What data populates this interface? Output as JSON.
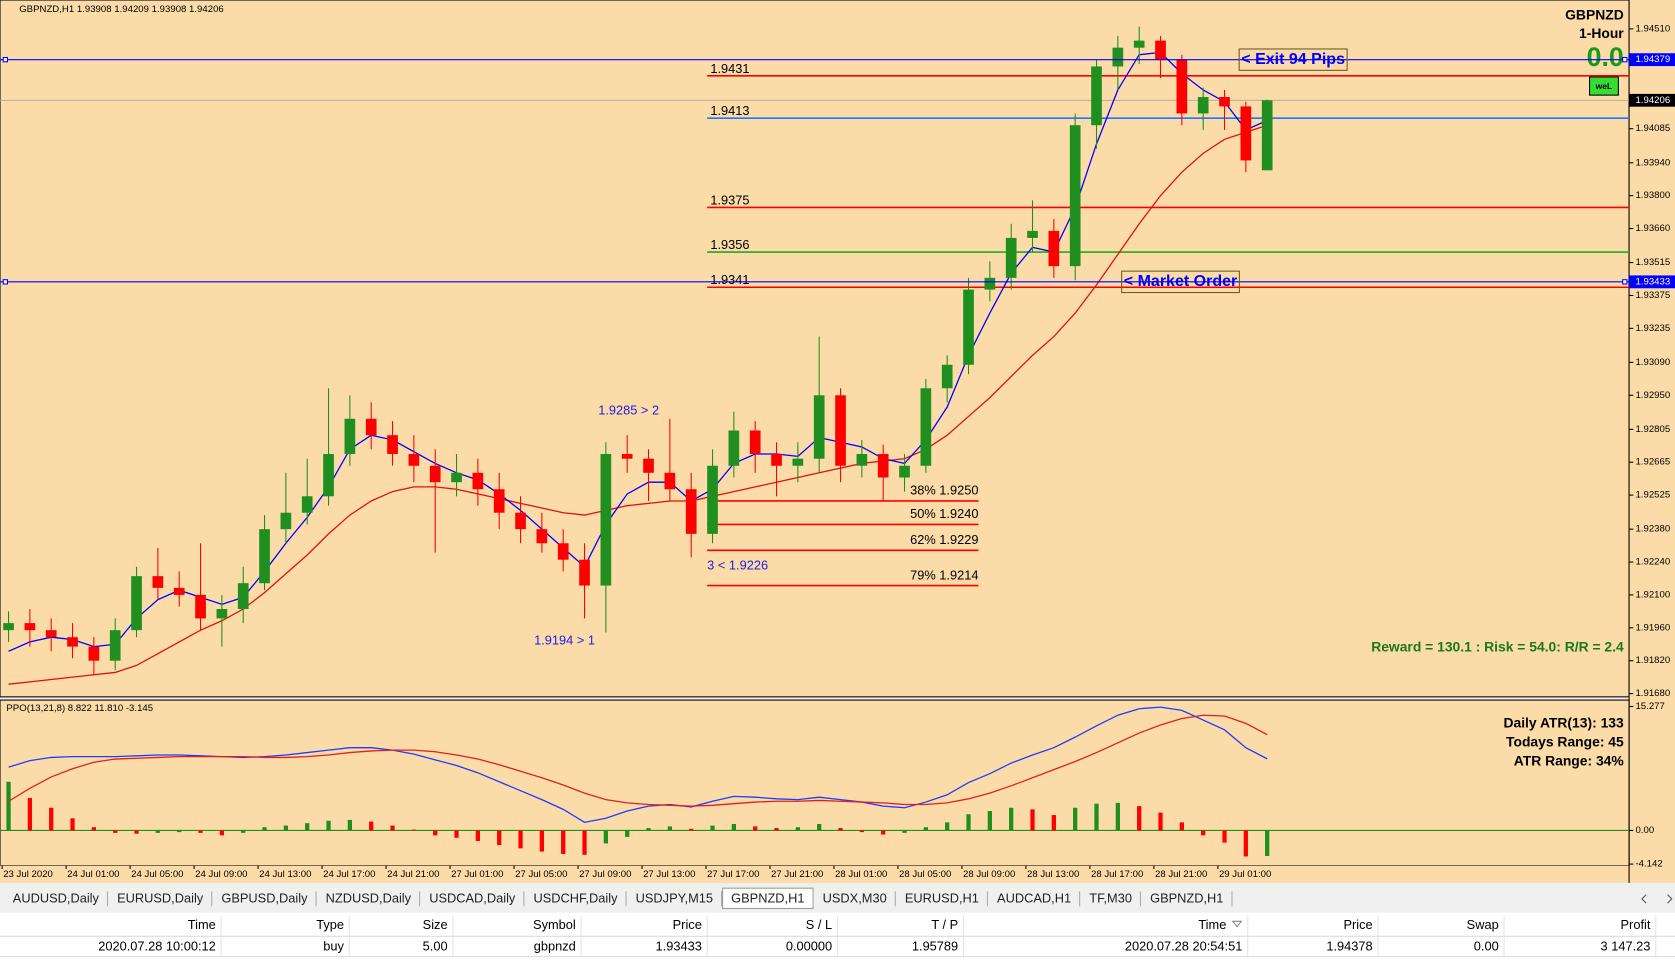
{
  "chart_data": {
    "type": "candlestick",
    "title": "GBPNZD,H1  1.93908 1.94209 1.93908 1.94206",
    "symbol": "GBPNZD",
    "timeframe": "1-Hour",
    "pnl_display": "0.0",
    "button_label": "weL",
    "reward_risk": "Reward = 130.1 : Risk = 54.0: R/R = 2.4",
    "up_color": "#1f8f1f",
    "down_color": "#ff0000",
    "candles": [
      [
        1.9195,
        1.9203,
        1.919,
        1.9198
      ],
      [
        1.9198,
        1.9204,
        1.9188,
        1.9195
      ],
      [
        1.9195,
        1.92,
        1.9186,
        1.9192
      ],
      [
        1.9192,
        1.9198,
        1.9183,
        1.9188
      ],
      [
        1.9188,
        1.9192,
        1.9176,
        1.9182
      ],
      [
        1.9182,
        1.92,
        1.9178,
        1.9195
      ],
      [
        1.9195,
        1.9222,
        1.9192,
        1.9218
      ],
      [
        1.9218,
        1.923,
        1.9208,
        1.9213
      ],
      [
        1.9213,
        1.922,
        1.9205,
        1.921
      ],
      [
        1.921,
        1.9232,
        1.9195,
        1.92
      ],
      [
        1.92,
        1.921,
        1.9188,
        1.9204
      ],
      [
        1.9204,
        1.9222,
        1.9198,
        1.9215
      ],
      [
        1.9215,
        1.9244,
        1.9212,
        1.9238
      ],
      [
        1.9238,
        1.9262,
        1.9232,
        1.9245
      ],
      [
        1.9245,
        1.9268,
        1.924,
        1.9252
      ],
      [
        1.9252,
        1.9298,
        1.9248,
        1.927
      ],
      [
        1.927,
        1.9295,
        1.9265,
        1.9285
      ],
      [
        1.9285,
        1.9292,
        1.9272,
        1.9278
      ],
      [
        1.9278,
        1.9284,
        1.9265,
        1.927
      ],
      [
        1.927,
        1.9278,
        1.9258,
        1.9265
      ],
      [
        1.9265,
        1.9272,
        1.9228,
        1.9258
      ],
      [
        1.9258,
        1.927,
        1.9252,
        1.9262
      ],
      [
        1.9262,
        1.9268,
        1.9248,
        1.9255
      ],
      [
        1.9255,
        1.9262,
        1.9238,
        1.9245
      ],
      [
        1.9245,
        1.9252,
        1.9232,
        1.9238
      ],
      [
        1.9238,
        1.9245,
        1.9228,
        1.9232
      ],
      [
        1.9232,
        1.9238,
        1.922,
        1.9225
      ],
      [
        1.9225,
        1.9232,
        1.92,
        1.9214
      ],
      [
        1.9214,
        1.9275,
        1.9194,
        1.927
      ],
      [
        1.927,
        1.9278,
        1.9262,
        1.9268
      ],
      [
        1.9268,
        1.9272,
        1.925,
        1.9262
      ],
      [
        1.9262,
        1.9285,
        1.925,
        1.9255
      ],
      [
        1.9255,
        1.9262,
        1.9226,
        1.9236
      ],
      [
        1.9236,
        1.9272,
        1.9232,
        1.9265
      ],
      [
        1.9265,
        1.9288,
        1.926,
        1.928
      ],
      [
        1.928,
        1.9284,
        1.9262,
        1.927
      ],
      [
        1.927,
        1.9275,
        1.9252,
        1.9265
      ],
      [
        1.9265,
        1.9275,
        1.9258,
        1.9268
      ],
      [
        1.9268,
        1.932,
        1.9262,
        1.9295
      ],
      [
        1.9295,
        1.9298,
        1.9258,
        1.9265
      ],
      [
        1.9265,
        1.9276,
        1.926,
        1.927
      ],
      [
        1.927,
        1.9274,
        1.925,
        1.926
      ],
      [
        1.926,
        1.927,
        1.9254,
        1.9265
      ],
      [
        1.9265,
        1.9302,
        1.9262,
        1.9298
      ],
      [
        1.9298,
        1.9312,
        1.9292,
        1.9308
      ],
      [
        1.9308,
        1.9345,
        1.9304,
        1.934
      ],
      [
        1.934,
        1.9352,
        1.9335,
        1.9345
      ],
      [
        1.9345,
        1.9368,
        1.934,
        1.9362
      ],
      [
        1.9362,
        1.9378,
        1.9356,
        1.9365
      ],
      [
        1.9365,
        1.937,
        1.9345,
        1.935
      ],
      [
        1.935,
        1.9415,
        1.9344,
        1.941
      ],
      [
        1.941,
        1.9438,
        1.94,
        1.9435
      ],
      [
        1.9435,
        1.9448,
        1.9425,
        1.9443
      ],
      [
        1.9443,
        1.9452,
        1.9436,
        1.9446
      ],
      [
        1.9446,
        1.9448,
        1.943,
        1.9438
      ],
      [
        1.9438,
        1.944,
        1.941,
        1.9415
      ],
      [
        1.9415,
        1.9426,
        1.9408,
        1.9422
      ],
      [
        1.9422,
        1.9425,
        1.9408,
        1.9418
      ],
      [
        1.9418,
        1.942,
        1.939,
        1.9395
      ],
      [
        1.93908,
        1.94209,
        1.93908,
        1.94206
      ]
    ],
    "ma_fast": {
      "color": "#0000ff",
      "values": [
        1.9186,
        1.919,
        1.9192,
        1.9191,
        1.9188,
        1.9189,
        1.92,
        1.9208,
        1.9212,
        1.9209,
        1.9206,
        1.9209,
        1.922,
        1.9232,
        1.9243,
        1.9256,
        1.9272,
        1.9278,
        1.9276,
        1.9271,
        1.9266,
        1.9262,
        1.9259,
        1.9253,
        1.9246,
        1.9238,
        1.923,
        1.9222,
        1.924,
        1.9253,
        1.9258,
        1.9258,
        1.925,
        1.9255,
        1.9266,
        1.927,
        1.927,
        1.9269,
        1.9277,
        1.9275,
        1.9273,
        1.9268,
        1.9266,
        1.9276,
        1.929,
        1.9312,
        1.933,
        1.9347,
        1.9358,
        1.9356,
        1.9375,
        1.9402,
        1.9425,
        1.944,
        1.9441,
        1.9432,
        1.9425,
        1.942,
        1.9408,
        1.9412
      ]
    },
    "ma_slow": {
      "color": "#e01010",
      "values": [
        1.9172,
        1.9173,
        1.9174,
        1.9175,
        1.9176,
        1.9177,
        1.918,
        1.9185,
        1.919,
        1.9195,
        1.9199,
        1.9204,
        1.9211,
        1.9219,
        1.9227,
        1.9236,
        1.9244,
        1.925,
        1.9254,
        1.9256,
        1.9256,
        1.9255,
        1.9253,
        1.9251,
        1.9249,
        1.9247,
        1.9245,
        1.9244,
        1.9246,
        1.9248,
        1.9249,
        1.925,
        1.925,
        1.9252,
        1.9254,
        1.9256,
        1.9258,
        1.926,
        1.9262,
        1.9264,
        1.9266,
        1.9267,
        1.9268,
        1.9272,
        1.9278,
        1.9286,
        1.9294,
        1.9303,
        1.9312,
        1.932,
        1.933,
        1.9342,
        1.9355,
        1.9368,
        1.938,
        1.939,
        1.9398,
        1.9404,
        1.9407,
        1.941
      ]
    },
    "ylim": [
      1.91666,
      1.94633
    ],
    "yticks": [
      {
        "value": 1.9451,
        "label": "1.94510"
      },
      1.94085,
      {
        "value": 1.9394,
        "label": "1.93940"
      },
      {
        "value": 1.938,
        "label": "1.93800"
      },
      {
        "value": 1.9366,
        "label": "1.93660"
      },
      1.93515,
      1.93375,
      1.93235,
      {
        "value": 1.9309,
        "label": "1.93090"
      },
      {
        "value": 1.9295,
        "label": "1.92950"
      },
      1.92805,
      1.92665,
      1.92525,
      {
        "value": 1.9238,
        "label": "1.92380"
      },
      {
        "value": 1.9224,
        "label": "1.92240"
      },
      {
        "value": 1.921,
        "label": "1.92100"
      },
      {
        "value": 1.9196,
        "label": "1.91960"
      },
      {
        "value": 1.9182,
        "label": "1.91820"
      },
      {
        "value": 1.9168,
        "label": "1.91680"
      }
    ],
    "levels": [
      {
        "value": 1.9431,
        "color": "#ff0000"
      },
      {
        "value": 1.9413,
        "color": "#1e78ff"
      },
      {
        "value": 1.9375,
        "color": "#ff0000"
      },
      {
        "value": 1.9356,
        "color": "#22aa22"
      },
      {
        "value": 1.9341,
        "color": "#ff0000"
      }
    ],
    "orders": [
      {
        "label": "< Exit 94 Pips",
        "price": 1.94379,
        "color": "#0000ff"
      },
      {
        "label": "< Market Order",
        "price": 1.93433,
        "color": "#0000ff"
      }
    ],
    "fib_levels": [
      {
        "label": "38% 1.9250",
        "value": 1.925
      },
      {
        "label": "50% 1.9240",
        "value": 1.924
      },
      {
        "label": "62% 1.9229",
        "value": 1.9229
      },
      {
        "label": "79% 1.9214",
        "value": 1.9214
      }
    ],
    "swings": [
      {
        "label": "1.9285 > 2",
        "value": 1.9285
      },
      {
        "label": "3 < 1.9226",
        "value": 1.9226
      },
      {
        "label": "1.9194 > 1",
        "value": 1.9194
      }
    ],
    "time_labels": [
      "23 Jul 2020",
      "24 Jul 01:00",
      "24 Jul 05:00",
      "24 Jul 09:00",
      "24 Jul 13:00",
      "24 Jul 17:00",
      "24 Jul 21:00",
      "27 Jul 01:00",
      "27 Jul 05:00",
      "27 Jul 09:00",
      "27 Jul 13:00",
      "27 Jul 17:00",
      "27 Jul 21:00",
      "28 Jul 01:00",
      "28 Jul 05:00",
      "28 Jul 09:00",
      "28 Jul 13:00",
      "28 Jul 17:00",
      "28 Jul 21:00",
      "29 Jul 01:00"
    ],
    "indicator": {
      "title": "PPO(13,21,8) 8.822 11.810 -3.145",
      "ylim": [
        -4.346,
        16.067
      ],
      "yticks": [
        15.277,
        {
          "value": 0,
          "label": "0.00"
        },
        -4.142
      ],
      "zero_color": "#1f8f1f",
      "lines": [
        {
          "color": "#1e3cff",
          "values": [
            7.8,
            8.6,
            9.0,
            9.1,
            9.1,
            9.1,
            9.2,
            9.3,
            9.3,
            9.2,
            9.1,
            9.0,
            9.1,
            9.3,
            9.6,
            9.9,
            10.2,
            10.2,
            9.9,
            9.4,
            8.7,
            8.0,
            7.1,
            6.0,
            4.9,
            3.8,
            2.6,
            1.0,
            1.5,
            2.4,
            3.0,
            3.2,
            2.9,
            3.6,
            4.2,
            4.1,
            3.9,
            3.8,
            4.1,
            3.8,
            3.5,
            3.0,
            2.8,
            3.5,
            4.4,
            5.9,
            7.0,
            8.3,
            9.3,
            10.2,
            11.5,
            12.9,
            14.2,
            15.0,
            15.2,
            14.8,
            13.6,
            12.4,
            10.2,
            8.822
          ]
        },
        {
          "color": "#e02020",
          "values": [
            3.6,
            5.2,
            6.6,
            7.6,
            8.4,
            8.8,
            8.9,
            9.0,
            9.1,
            9.1,
            9.1,
            9.1,
            9.0,
            9.0,
            9.1,
            9.3,
            9.6,
            9.8,
            9.9,
            9.9,
            9.7,
            9.3,
            8.8,
            8.1,
            7.3,
            6.5,
            5.6,
            4.6,
            3.8,
            3.4,
            3.2,
            3.1,
            3.0,
            3.1,
            3.3,
            3.5,
            3.6,
            3.6,
            3.7,
            3.6,
            3.5,
            3.4,
            3.2,
            3.2,
            3.4,
            3.9,
            4.6,
            5.5,
            6.5,
            7.5,
            8.5,
            9.6,
            10.8,
            12.0,
            13.0,
            13.8,
            14.2,
            14.1,
            13.2,
            11.81
          ]
        }
      ],
      "histogram": {
        "up_color": "#1f8f1f",
        "down_color": "#ff0000",
        "values": [
          6.0,
          4.0,
          2.8,
          1.5,
          0.4,
          -0.3,
          -0.4,
          -0.3,
          -0.2,
          -0.3,
          -0.6,
          -0.3,
          0.4,
          0.6,
          0.9,
          1.2,
          1.3,
          1.1,
          0.6,
          0.1,
          -0.6,
          -0.9,
          -1.3,
          -1.8,
          -2.2,
          -2.6,
          -2.9,
          -3.0,
          -1.6,
          -0.8,
          0.3,
          0.5,
          0.2,
          0.6,
          0.8,
          0.5,
          0.3,
          0.4,
          0.8,
          0.3,
          -0.2,
          -0.5,
          -0.3,
          0.4,
          1.0,
          2.0,
          2.4,
          2.8,
          2.6,
          1.9,
          2.8,
          3.3,
          3.4,
          3.0,
          2.2,
          1.0,
          -0.6,
          -1.5,
          -3.2,
          -3.145
        ]
      },
      "info": [
        "Daily ATR(13): 133",
        "Todays Range: 45",
        "ATR Range: 34%"
      ]
    }
  },
  "tabs": {
    "items": [
      "AUDUSD,Daily",
      "EURUSD,Daily",
      "GBPUSD,Daily",
      "NZDUSD,Daily",
      "USDCAD,Daily",
      "USDCHF,Daily",
      "USDJPY,M15",
      "GBPNZD,H1",
      "USDX,M30",
      "EURUSD,H1",
      "AUDCAD,H1",
      "TF,M30",
      "GBPNZD,H1"
    ],
    "active": 7
  },
  "trades": {
    "columns": [
      "Time",
      "Type",
      "Size",
      "Symbol",
      "Price",
      "S / L",
      "T / P",
      "Time",
      "Price",
      "Swap",
      "Profit"
    ],
    "rows": [
      [
        "2020.07.28 10:00:12",
        "buy",
        "5.00",
        "gbpnzd",
        "1.93433",
        "0.00000",
        "1.95789",
        "2020.07.28 20:54:51",
        "1.94378",
        "0.00",
        "3 147.23"
      ]
    ]
  }
}
